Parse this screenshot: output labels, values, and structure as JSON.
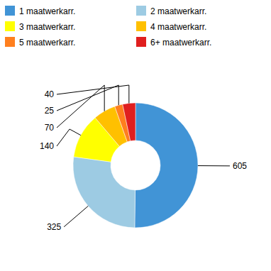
{
  "chart_data": {
    "type": "donut",
    "categories": [
      "1 maatwerkarr.",
      "2 maatwerkarr.",
      "3 maatwerkarr.",
      "4 maatwerkarr.",
      "5 maatwerkarr.",
      "6+ maatwerkarr."
    ],
    "values": [
      605,
      325,
      140,
      70,
      25,
      40
    ],
    "colors": [
      "#4194d6",
      "#9dcbe3",
      "#ffff00",
      "#ffc000",
      "#ff7f1e",
      "#e01f1f"
    ],
    "data_labels": true,
    "legend": "top"
  }
}
